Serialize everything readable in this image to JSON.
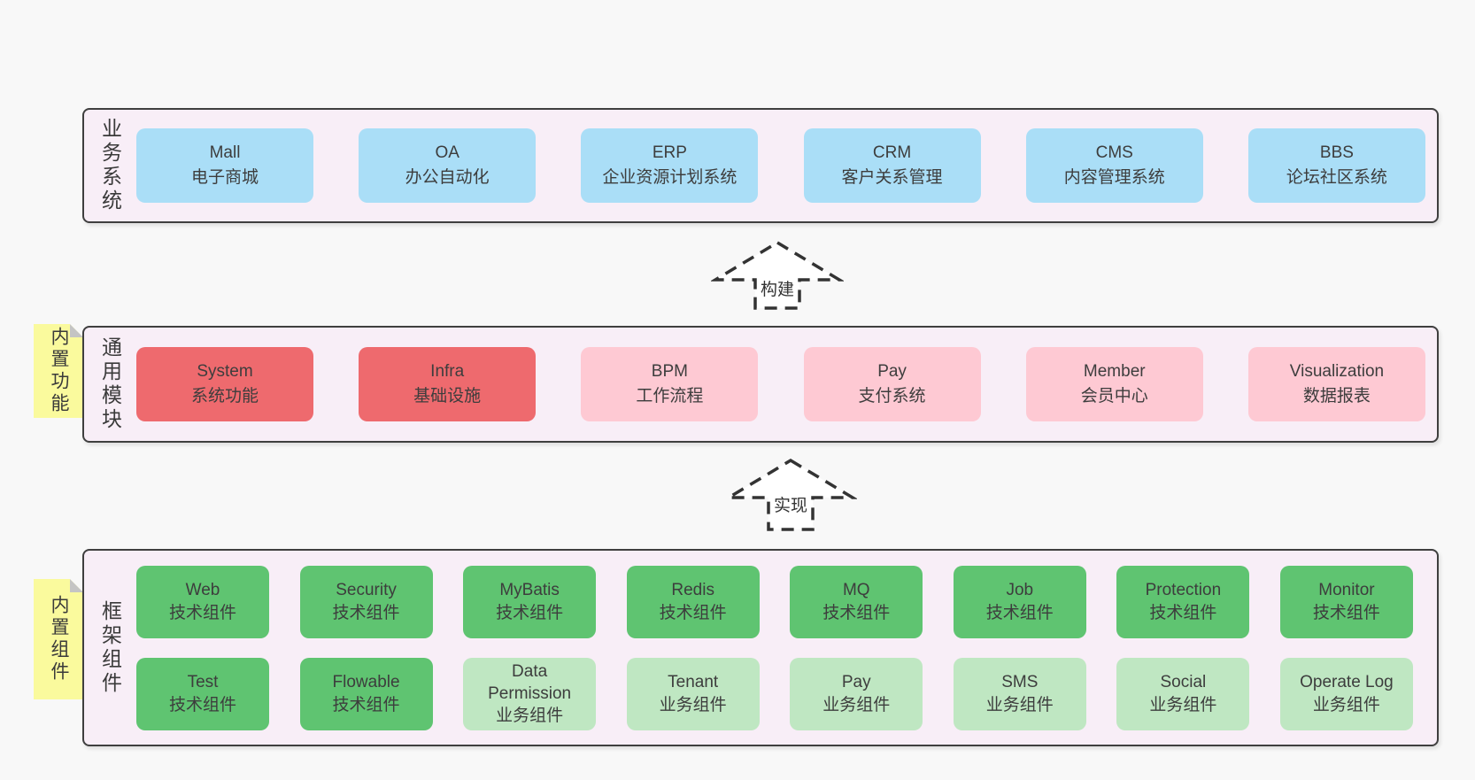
{
  "colors": {
    "page": "#f8f8f8",
    "container": "#f8eef7",
    "border": "#3f3f3f",
    "text": "#3a3a3a",
    "blue": "#aadef7",
    "red": "#ee6a6e",
    "pink": "#fec9d3",
    "green": "#5fc471",
    "lightgreen": "#bfe7c2",
    "sticky": "#fafa9d",
    "fold": "#c4c4c4"
  },
  "arrows": [
    {
      "label": "构建"
    },
    {
      "label": "实现"
    }
  ],
  "layers": [
    {
      "label": "业务系统",
      "boxes": [
        {
          "title": "Mall",
          "subtitle": "电子商城",
          "color": "blue"
        },
        {
          "title": "OA",
          "subtitle": "办公自动化",
          "color": "blue"
        },
        {
          "title": "ERP",
          "subtitle": "企业资源计划系统",
          "color": "blue"
        },
        {
          "title": "CRM",
          "subtitle": "客户关系管理",
          "color": "blue"
        },
        {
          "title": "CMS",
          "subtitle": "内容管理系统",
          "color": "blue"
        },
        {
          "title": "BBS",
          "subtitle": "论坛社区系统",
          "color": "blue"
        }
      ]
    },
    {
      "label": "通用模块",
      "sticky": "内置功能",
      "boxes": [
        {
          "title": "System",
          "subtitle": "系统功能",
          "color": "red"
        },
        {
          "title": "Infra",
          "subtitle": "基础设施",
          "color": "red"
        },
        {
          "title": "BPM",
          "subtitle": "工作流程",
          "color": "pink"
        },
        {
          "title": "Pay",
          "subtitle": "支付系统",
          "color": "pink"
        },
        {
          "title": "Member",
          "subtitle": "会员中心",
          "color": "pink"
        },
        {
          "title": "Visualization",
          "subtitle": "数据报表",
          "color": "pink"
        }
      ]
    },
    {
      "label": "框架组件",
      "sticky": "内置组件",
      "rows": [
        [
          {
            "title": "Web",
            "subtitle": "技术组件",
            "color": "green"
          },
          {
            "title": "Security",
            "subtitle": "技术组件",
            "color": "green"
          },
          {
            "title": "MyBatis",
            "subtitle": "技术组件",
            "color": "green"
          },
          {
            "title": "Redis",
            "subtitle": "技术组件",
            "color": "green"
          },
          {
            "title": "MQ",
            "subtitle": "技术组件",
            "color": "green"
          },
          {
            "title": "Job",
            "subtitle": "技术组件",
            "color": "green"
          },
          {
            "title": "Protection",
            "subtitle": "技术组件",
            "color": "green"
          },
          {
            "title": "Monitor",
            "subtitle": "技术组件",
            "color": "green"
          }
        ],
        [
          {
            "title": "Test",
            "subtitle": "技术组件",
            "color": "green"
          },
          {
            "title": "Flowable",
            "subtitle": "技术组件",
            "color": "green"
          },
          {
            "title": "Data Permission",
            "subtitle": "业务组件",
            "color": "lightgreen"
          },
          {
            "title": "Tenant",
            "subtitle": "业务组件",
            "color": "lightgreen"
          },
          {
            "title": "Pay",
            "subtitle": "业务组件",
            "color": "lightgreen"
          },
          {
            "title": "SMS",
            "subtitle": "业务组件",
            "color": "lightgreen"
          },
          {
            "title": "Social",
            "subtitle": "业务组件",
            "color": "lightgreen"
          },
          {
            "title": "Operate Log",
            "subtitle": "业务组件",
            "color": "lightgreen"
          }
        ]
      ]
    }
  ]
}
